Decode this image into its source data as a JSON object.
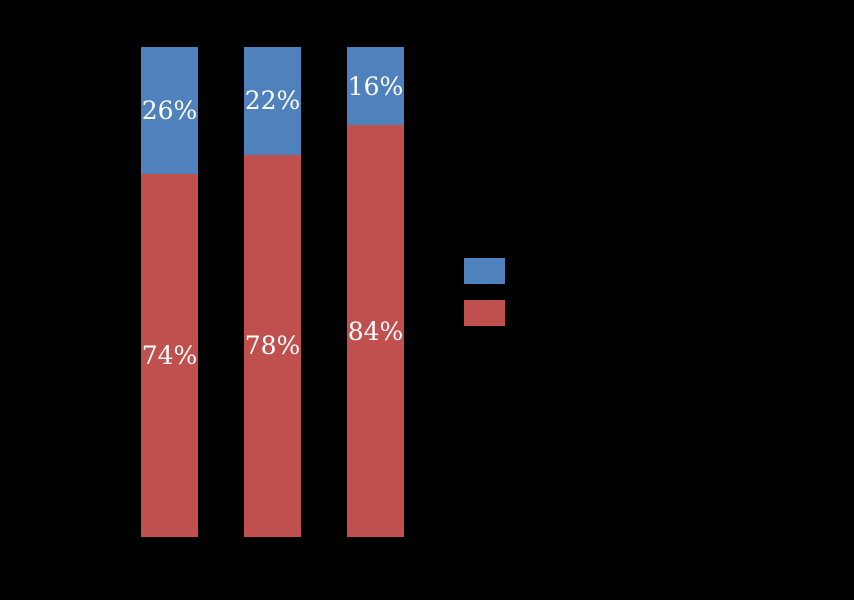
{
  "chart_data": {
    "type": "bar",
    "stacked": true,
    "percent_stacked": true,
    "title": "",
    "xlabel": "",
    "ylabel": "",
    "ylim": [
      0,
      100
    ],
    "background_color": "#000000",
    "label_color": "#FFFFFF",
    "categories": [
      "",
      "",
      ""
    ],
    "series": [
      {
        "name": "top-blue-series",
        "color": "#4F81BD",
        "values": [
          26,
          22,
          16
        ],
        "labels": [
          "26%",
          "22%",
          "16%"
        ]
      },
      {
        "name": "bottom-red-series",
        "color": "#C0504D",
        "values": [
          74,
          78,
          84
        ],
        "labels": [
          "74%",
          "78%",
          "84%"
        ]
      }
    ],
    "legend": {
      "position": "right",
      "entries": [
        {
          "color": "#4F81BD",
          "label": ""
        },
        {
          "color": "#C0504D",
          "label": ""
        }
      ]
    }
  }
}
